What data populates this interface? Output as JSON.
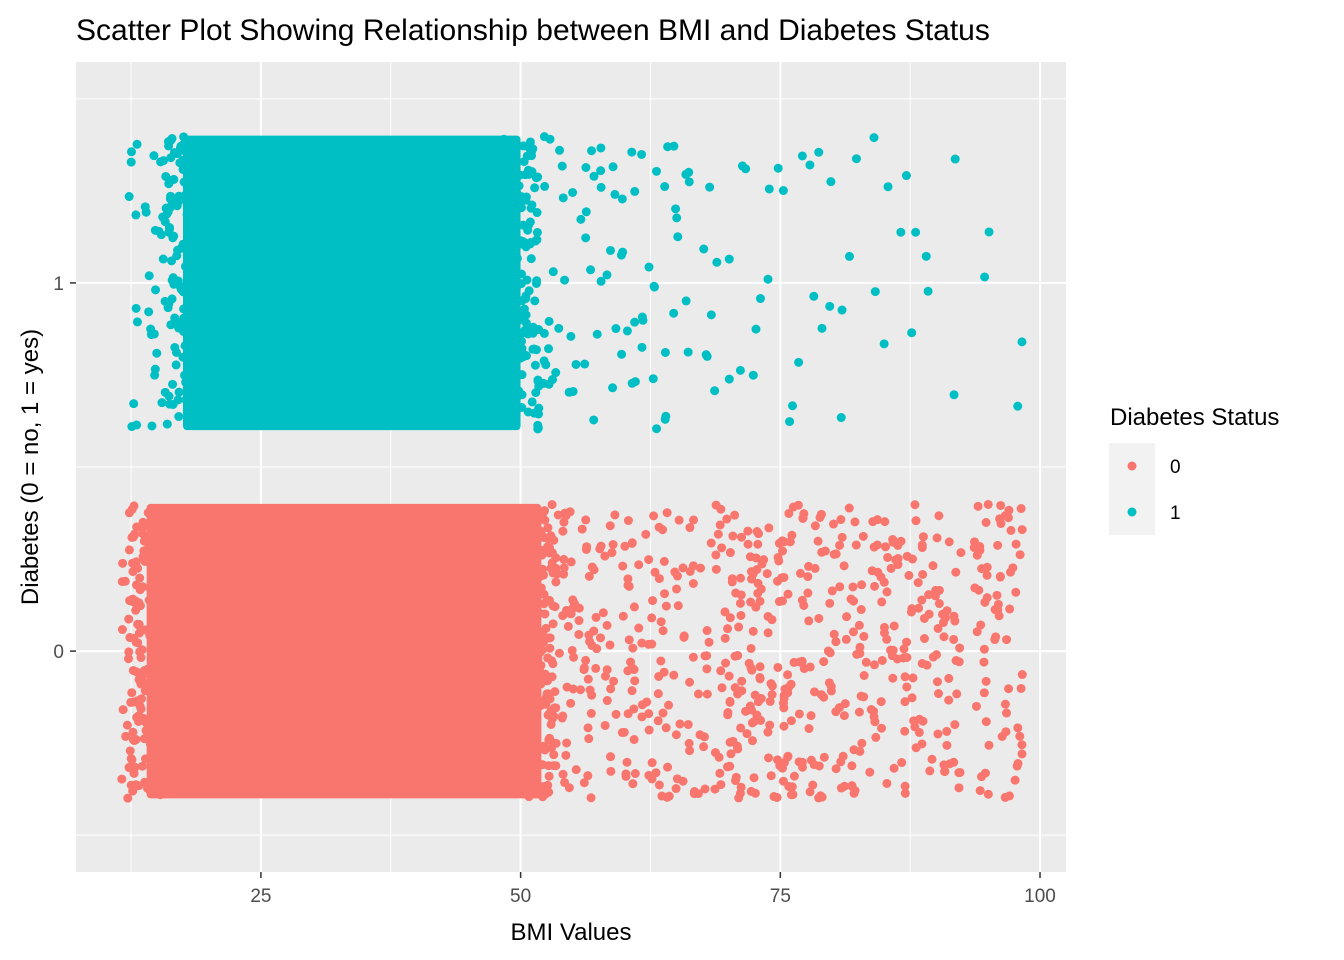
{
  "chart_data": {
    "type": "scatter",
    "title": "Scatter Plot Showing Relationship between BMI and Diabetes Status",
    "xlabel": "BMI Values",
    "ylabel": "Diabetes (0 = no, 1 = yes)",
    "xlim": [
      7.2,
      102.5
    ],
    "ylim": [
      -0.6,
      1.6
    ],
    "x_ticks": [
      25,
      50,
      75,
      100
    ],
    "y_ticks": [
      0,
      1
    ],
    "y_jitter": 0.4,
    "grid": true,
    "background": "#ebebeb",
    "legend": {
      "title": "Diabetes Status",
      "position": "right"
    },
    "series": [
      {
        "name": "0",
        "y": 0,
        "color": "#f8766d",
        "dense_x_range": [
          14,
          52
        ],
        "sparse_x": [
          12,
          13,
          13.5,
          15,
          52.5,
          53,
          54,
          54.5,
          55,
          56,
          56.5,
          57,
          58,
          59,
          60,
          60.5,
          61,
          62,
          63,
          63.5,
          64,
          65,
          66,
          67,
          68,
          69,
          70,
          70.5,
          71,
          72,
          72.5,
          73,
          74,
          75,
          75.5,
          76,
          77,
          78,
          79,
          80,
          81,
          82,
          83,
          84,
          85,
          86,
          87,
          88,
          89,
          90,
          91,
          92,
          94,
          95,
          96,
          97,
          98
        ]
      },
      {
        "name": "1",
        "y": 1,
        "color": "#00bfc4",
        "dense_x_range": [
          17.5,
          50
        ],
        "sparse_x": [
          12.5,
          13,
          14,
          14.5,
          15,
          15.5,
          16,
          16.5,
          17,
          50.5,
          51,
          52,
          52.5,
          53,
          54,
          55,
          56,
          57,
          58,
          59,
          60,
          61,
          62,
          63,
          64,
          65,
          66,
          68,
          69,
          70,
          71,
          72,
          73,
          74,
          75,
          76,
          77,
          78,
          79,
          80,
          81,
          82,
          84,
          85,
          87,
          88,
          89,
          92,
          95,
          98
        ]
      }
    ]
  }
}
